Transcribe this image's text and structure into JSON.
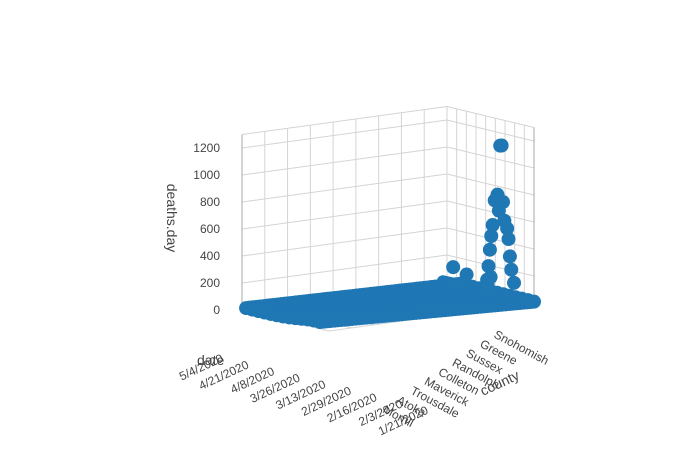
{
  "chart_data": {
    "type": "scatter",
    "mode": "3d-markers",
    "marker_color": "#1f77b4",
    "xlabel": "county",
    "ylabel": "date",
    "zlabel": "deaths.day",
    "x_tick_labels": [
      "Morrill",
      "Atoka",
      "Trousdale",
      "Maverick",
      "Colleton",
      "Randolph",
      "Sussex",
      "Greene",
      "Snohomish"
    ],
    "y_tick_labels": [
      "1/21/2020",
      "2/3/2020",
      "2/16/2020",
      "2/29/2020",
      "3/13/2020",
      "3/26/2020",
      "4/8/2020",
      "4/21/2020",
      "5/4/2020"
    ],
    "z_tick_values": [
      0,
      200,
      400,
      600,
      800,
      1000,
      1200
    ],
    "zlim": [
      0,
      1300
    ],
    "grid": true,
    "points": [
      {
        "county": "Snohomish",
        "date": "4/10/2020",
        "deaths": 1180
      },
      {
        "county": "Snohomish",
        "date": "4/12/2020",
        "deaths": 1180
      },
      {
        "county": "Snohomish",
        "date": "4/6/2020",
        "deaths": 820
      },
      {
        "county": "Snohomish",
        "date": "4/2/2020",
        "deaths": 780
      },
      {
        "county": "Snohomish",
        "date": "4/14/2020",
        "deaths": 760
      },
      {
        "county": "Snohomish",
        "date": "4/8/2020",
        "deaths": 700
      },
      {
        "county": "Snohomish",
        "date": "4/16/2020",
        "deaths": 620
      },
      {
        "county": "Snohomish",
        "date": "3/30/2020",
        "deaths": 600
      },
      {
        "county": "Snohomish",
        "date": "4/20/2020",
        "deaths": 560
      },
      {
        "county": "Snohomish",
        "date": "3/28/2020",
        "deaths": 520
      },
      {
        "county": "Snohomish",
        "date": "4/22/2020",
        "deaths": 480
      },
      {
        "county": "Snohomish",
        "date": "3/26/2020",
        "deaths": 420
      },
      {
        "county": "Snohomish",
        "date": "4/24/2020",
        "deaths": 350
      },
      {
        "county": "Snohomish",
        "date": "3/24/2020",
        "deaths": 300
      },
      {
        "county": "Snohomish",
        "date": "4/26/2020",
        "deaths": 250
      },
      {
        "county": "Snohomish",
        "date": "3/22/2020",
        "deaths": 200
      },
      {
        "county": "Snohomish",
        "date": "4/30/2020",
        "deaths": 150
      },
      {
        "county": "Sussex",
        "date": "4/15/2020",
        "deaths": 180
      },
      {
        "county": "Randolph",
        "date": "4/20/2020",
        "deaths": 120
      },
      {
        "county": "Atoka",
        "date": "4/8/2020",
        "deaths": 200
      },
      {
        "county": "Trousdale",
        "date": "4/18/2020",
        "deaths": 150
      }
    ]
  }
}
